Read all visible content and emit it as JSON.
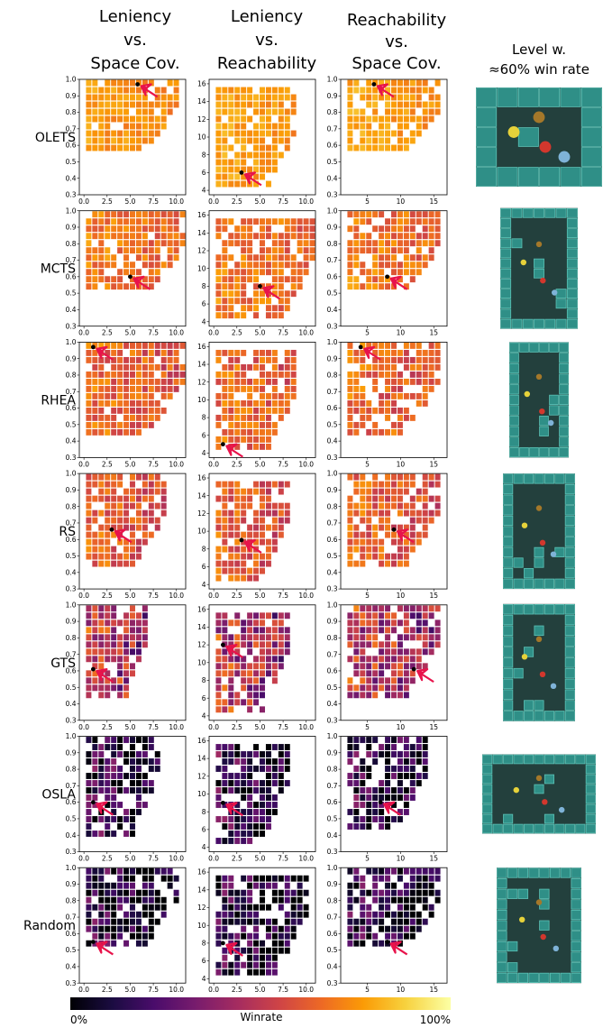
{
  "column_titles": [
    [
      "Leniency",
      "vs.",
      "Space Cov."
    ],
    [
      "Leniency",
      "vs.",
      "Reachability"
    ],
    [
      "Reachability",
      "vs.",
      "Space Cov."
    ],
    [
      "Level w.",
      "≈60% win rate"
    ]
  ],
  "colorbar": {
    "label": "Winrate",
    "min_label": "0%",
    "max_label": "100%",
    "colormap": "inferno",
    "stops": [
      "#000004",
      "#1b0c41",
      "#4a0c6b",
      "#781c6d",
      "#a52c60",
      "#cf4446",
      "#ed6925",
      "#fb9b06",
      "#f7d13d",
      "#fcffa4"
    ]
  },
  "tile_colors": {
    "wall": "#2f8f87",
    "wall_light": "#5cc2b6",
    "floor": "#23403d"
  },
  "chart_data": [
    {
      "type": "heatmap",
      "agent": "OLETS",
      "panels": [
        {
          "x_ticks": [
            "0.0",
            "2.5",
            "5.0",
            "7.5",
            "10.0"
          ],
          "y_ticks": [
            "0.3",
            "0.4",
            "0.5",
            "0.6",
            "0.7",
            "0.8",
            "0.9",
            "1.0"
          ],
          "xlim": [
            -0.5,
            11
          ],
          "ylim": [
            0.3,
            1.0
          ],
          "marker": [
            5.8,
            0.97
          ],
          "mean_winrate": 0.78,
          "spread": 0.06,
          "density": 0.9,
          "extent": [
            0,
            10,
            0.55,
            1.0
          ]
        },
        {
          "x_ticks": [
            "0.0",
            "2.5",
            "5.0",
            "7.5",
            "10.0"
          ],
          "y_ticks": [
            "4",
            "6",
            "8",
            "10",
            "12",
            "14",
            "16"
          ],
          "xlim": [
            -0.5,
            11
          ],
          "ylim": [
            3.5,
            16.5
          ],
          "marker": [
            3,
            6
          ],
          "mean_winrate": 0.8,
          "spread": 0.06,
          "density": 0.85,
          "extent": [
            0,
            9,
            4,
            16
          ]
        },
        {
          "x_ticks": [
            "5",
            "10",
            "15"
          ],
          "y_ticks": [
            "0.3",
            "0.4",
            "0.5",
            "0.6",
            "0.7",
            "0.8",
            "0.9",
            "1.0"
          ],
          "xlim": [
            1,
            17
          ],
          "ylim": [
            0.3,
            1.0
          ],
          "marker": [
            6,
            0.97
          ],
          "mean_winrate": 0.8,
          "spread": 0.06,
          "density": 0.85,
          "extent": [
            2,
            16,
            0.55,
            1.0
          ]
        }
      ]
    },
    {
      "type": "heatmap",
      "agent": "MCTS",
      "panels": [
        {
          "x_ticks": [
            "0.0",
            "2.5",
            "5.0",
            "7.5",
            "10.0"
          ],
          "y_ticks": [
            "0.3",
            "0.4",
            "0.5",
            "0.6",
            "0.7",
            "0.8",
            "0.9",
            "1.0"
          ],
          "xlim": [
            -0.5,
            11
          ],
          "ylim": [
            0.3,
            1.0
          ],
          "marker": [
            5,
            0.6
          ],
          "mean_winrate": 0.72,
          "spread": 0.1,
          "density": 0.88,
          "extent": [
            0,
            11,
            0.5,
            1.0
          ]
        },
        {
          "x_ticks": [
            "0.0",
            "2.5",
            "5.0",
            "7.5",
            "10.0"
          ],
          "y_ticks": [
            "4",
            "6",
            "8",
            "10",
            "12",
            "14",
            "16"
          ],
          "xlim": [
            -0.5,
            11
          ],
          "ylim": [
            3.5,
            16.5
          ],
          "marker": [
            5,
            8
          ],
          "mean_winrate": 0.72,
          "spread": 0.1,
          "density": 0.85,
          "extent": [
            0,
            11,
            4,
            16
          ]
        },
        {
          "x_ticks": [
            "5",
            "10",
            "15"
          ],
          "y_ticks": [
            "0.3",
            "0.4",
            "0.5",
            "0.6",
            "0.7",
            "0.8",
            "0.9",
            "1.0"
          ],
          "xlim": [
            1,
            17
          ],
          "ylim": [
            0.3,
            1.0
          ],
          "marker": [
            8,
            0.6
          ],
          "mean_winrate": 0.72,
          "spread": 0.1,
          "density": 0.85,
          "extent": [
            2,
            16,
            0.5,
            1.0
          ]
        }
      ]
    },
    {
      "type": "heatmap",
      "agent": "RHEA",
      "panels": [
        {
          "x_ticks": [
            "0.0",
            "2.5",
            "5.0",
            "7.5",
            "10.0"
          ],
          "y_ticks": [
            "0.3",
            "0.4",
            "0.5",
            "0.6",
            "0.7",
            "0.8",
            "0.9",
            "1.0"
          ],
          "xlim": [
            -0.5,
            11
          ],
          "ylim": [
            0.3,
            1.0
          ],
          "marker": [
            1,
            0.97
          ],
          "mean_winrate": 0.68,
          "spread": 0.12,
          "density": 0.9,
          "extent": [
            0,
            11,
            0.45,
            1.0
          ]
        },
        {
          "x_ticks": [
            "0.0",
            "2.5",
            "5.0",
            "7.5",
            "10.0"
          ],
          "y_ticks": [
            "4",
            "6",
            "8",
            "10",
            "12",
            "14",
            "16"
          ],
          "xlim": [
            -0.5,
            11
          ],
          "ylim": [
            3.5,
            16.5
          ],
          "marker": [
            1,
            5
          ],
          "mean_winrate": 0.68,
          "spread": 0.12,
          "density": 0.85,
          "extent": [
            0,
            9,
            4,
            16
          ]
        },
        {
          "x_ticks": [
            "5",
            "10",
            "15"
          ],
          "y_ticks": [
            "0.3",
            "0.4",
            "0.5",
            "0.6",
            "0.7",
            "0.8",
            "0.9",
            "1.0"
          ],
          "xlim": [
            1,
            17
          ],
          "ylim": [
            0.3,
            1.0
          ],
          "marker": [
            4,
            0.97
          ],
          "mean_winrate": 0.68,
          "spread": 0.12,
          "density": 0.85,
          "extent": [
            2,
            16,
            0.45,
            1.0
          ]
        }
      ]
    },
    {
      "type": "heatmap",
      "agent": "RS",
      "panels": [
        {
          "x_ticks": [
            "0.0",
            "2.5",
            "5.0",
            "7.5",
            "10.0"
          ],
          "y_ticks": [
            "0.3",
            "0.4",
            "0.5",
            "0.6",
            "0.7",
            "0.8",
            "0.9",
            "1.0"
          ],
          "xlim": [
            -0.5,
            11
          ],
          "ylim": [
            0.3,
            1.0
          ],
          "marker": [
            3,
            0.66
          ],
          "mean_winrate": 0.66,
          "spread": 0.12,
          "density": 0.85,
          "extent": [
            0,
            9,
            0.45,
            1.0
          ]
        },
        {
          "x_ticks": [
            "0.0",
            "2.5",
            "5.0",
            "7.5",
            "10.0"
          ],
          "y_ticks": [
            "4",
            "6",
            "8",
            "10",
            "12",
            "14",
            "16"
          ],
          "xlim": [
            -0.5,
            11
          ],
          "ylim": [
            3.5,
            16.5
          ],
          "marker": [
            3,
            9
          ],
          "mean_winrate": 0.66,
          "spread": 0.12,
          "density": 0.85,
          "extent": [
            0,
            8,
            4,
            16
          ]
        },
        {
          "x_ticks": [
            "5",
            "10",
            "15"
          ],
          "y_ticks": [
            "0.3",
            "0.4",
            "0.5",
            "0.6",
            "0.7",
            "0.8",
            "0.9",
            "1.0"
          ],
          "xlim": [
            1,
            17
          ],
          "ylim": [
            0.3,
            1.0
          ],
          "marker": [
            9,
            0.66
          ],
          "mean_winrate": 0.66,
          "spread": 0.12,
          "density": 0.85,
          "extent": [
            2,
            16,
            0.45,
            1.0
          ]
        }
      ]
    },
    {
      "type": "heatmap",
      "agent": "GTS",
      "panels": [
        {
          "x_ticks": [
            "0.0",
            "2.5",
            "5.0",
            "7.5",
            "10.0"
          ],
          "y_ticks": [
            "0.3",
            "0.4",
            "0.5",
            "0.6",
            "0.7",
            "0.8",
            "0.9",
            "1.0"
          ],
          "xlim": [
            -0.5,
            11
          ],
          "ylim": [
            0.3,
            1.0
          ],
          "marker": [
            1,
            0.61
          ],
          "mean_winrate": 0.55,
          "spread": 0.22,
          "density": 0.85,
          "extent": [
            0,
            7,
            0.45,
            1.0
          ]
        },
        {
          "x_ticks": [
            "0.0",
            "2.5",
            "5.0",
            "7.5",
            "10.0"
          ],
          "y_ticks": [
            "4",
            "6",
            "8",
            "10",
            "12",
            "14",
            "16"
          ],
          "xlim": [
            -0.5,
            11
          ],
          "ylim": [
            3.5,
            16.5
          ],
          "marker": [
            1,
            12
          ],
          "mean_winrate": 0.55,
          "spread": 0.22,
          "density": 0.85,
          "extent": [
            0,
            8,
            4,
            16
          ]
        },
        {
          "x_ticks": [
            "5",
            "10",
            "15"
          ],
          "y_ticks": [
            "0.3",
            "0.4",
            "0.5",
            "0.6",
            "0.7",
            "0.8",
            "0.9",
            "1.0"
          ],
          "xlim": [
            1,
            17
          ],
          "ylim": [
            0.3,
            1.0
          ],
          "marker": [
            12,
            0.61
          ],
          "mean_winrate": 0.55,
          "spread": 0.22,
          "density": 0.85,
          "extent": [
            2,
            16,
            0.45,
            1.0
          ]
        }
      ]
    },
    {
      "type": "heatmap",
      "agent": "OSLA",
      "panels": [
        {
          "x_ticks": [
            "0.0",
            "2.5",
            "5.0",
            "7.5",
            "10.0"
          ],
          "y_ticks": [
            "0.3",
            "0.4",
            "0.5",
            "0.6",
            "0.7",
            "0.8",
            "0.9",
            "1.0"
          ],
          "xlim": [
            -0.5,
            11
          ],
          "ylim": [
            0.3,
            1.0
          ],
          "marker": [
            1,
            0.6
          ],
          "mean_winrate": 0.22,
          "spread": 0.22,
          "density": 0.8,
          "extent": [
            0,
            8,
            0.4,
            1.0
          ]
        },
        {
          "x_ticks": [
            "0.0",
            "2.5",
            "5.0",
            "7.5",
            "10.0"
          ],
          "y_ticks": [
            "4",
            "6",
            "8",
            "10",
            "12",
            "14",
            "16"
          ],
          "xlim": [
            -0.5,
            11
          ],
          "ylim": [
            3.5,
            16.5
          ],
          "marker": [
            1,
            9
          ],
          "mean_winrate": 0.22,
          "spread": 0.22,
          "density": 0.8,
          "extent": [
            0,
            8,
            4,
            16
          ]
        },
        {
          "x_ticks": [
            "5",
            "10",
            "15"
          ],
          "y_ticks": [
            "0.3",
            "0.4",
            "0.5",
            "0.6",
            "0.7",
            "0.8",
            "0.9",
            "1.0"
          ],
          "xlim": [
            1,
            17
          ],
          "ylim": [
            0.3,
            1.0
          ],
          "marker": [
            7,
            0.6
          ],
          "mean_winrate": 0.22,
          "spread": 0.22,
          "density": 0.8,
          "extent": [
            2,
            14,
            0.45,
            1.0
          ]
        }
      ]
    },
    {
      "type": "heatmap",
      "agent": "Random",
      "panels": [
        {
          "x_ticks": [
            "0.0",
            "2.5",
            "5.0",
            "7.5",
            "10.0"
          ],
          "y_ticks": [
            "0.3",
            "0.4",
            "0.5",
            "0.6",
            "0.7",
            "0.8",
            "0.9",
            "1.0"
          ],
          "xlim": [
            -0.5,
            11
          ],
          "ylim": [
            0.3,
            1.0
          ],
          "marker": [
            1,
            0.55
          ],
          "mean_winrate": 0.18,
          "spread": 0.22,
          "density": 0.82,
          "extent": [
            0,
            10,
            0.5,
            1.0
          ]
        },
        {
          "x_ticks": [
            "0.0",
            "2.5",
            "5.0",
            "7.5",
            "10.0"
          ],
          "y_ticks": [
            "4",
            "6",
            "8",
            "10",
            "12",
            "14",
            "16"
          ],
          "xlim": [
            -0.5,
            11
          ],
          "ylim": [
            3.5,
            16.5
          ],
          "marker": [
            1,
            8
          ],
          "mean_winrate": 0.18,
          "spread": 0.22,
          "density": 0.82,
          "extent": [
            0,
            10,
            4,
            16
          ]
        },
        {
          "x_ticks": [
            "5",
            "10",
            "15"
          ],
          "y_ticks": [
            "0.3",
            "0.4",
            "0.5",
            "0.6",
            "0.7",
            "0.8",
            "0.9",
            "1.0"
          ],
          "xlim": [
            1,
            17
          ],
          "ylim": [
            0.3,
            1.0
          ],
          "marker": [
            8,
            0.55
          ],
          "mean_winrate": 0.18,
          "spread": 0.22,
          "density": 0.82,
          "extent": [
            2,
            16,
            0.5,
            1.0
          ]
        }
      ]
    }
  ]
}
